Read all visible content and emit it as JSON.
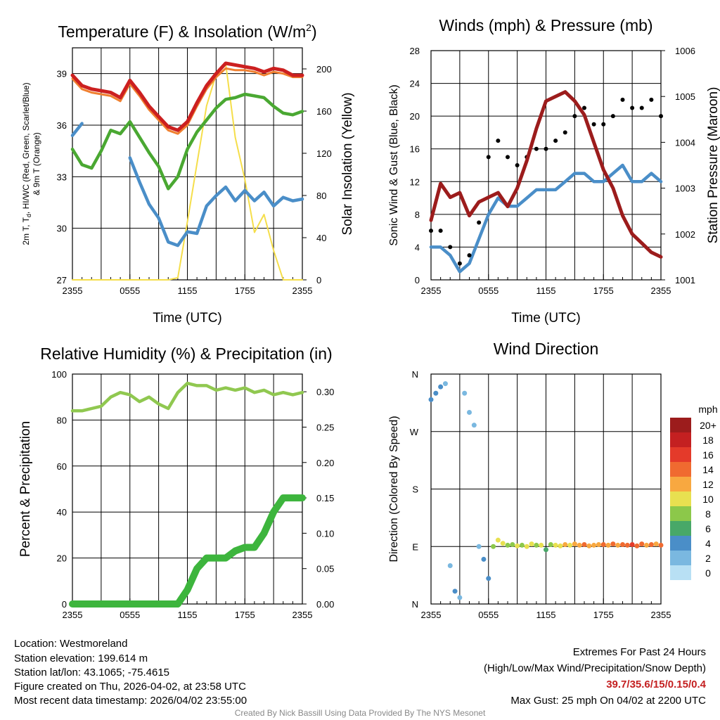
{
  "colors": {
    "red": "#cc2020",
    "orange": "#f08030",
    "green": "#4aa832",
    "blue": "#4a8ec8",
    "yellow": "#f5de4a",
    "maroon": "#9c1c1c",
    "black": "#000000",
    "rh": "#90c850",
    "precip": "#3db53d",
    "grid": "#000000",
    "extremes": "#c42021",
    "credit": "#888888"
  },
  "chart_data": [
    {
      "type": "line",
      "title": "Temperature (F) & Insolation (W/m",
      "title_sup": "2",
      "title_close": ")",
      "xlabel": "Time (UTC)",
      "ylabel_lines": [
        "2m T, T",
        "d",
        ", HI/WC (Red, Green, Scarlet/Blue)",
        "& 9m T (Orange)"
      ],
      "y2label": "Solar Insolation (Yellow)",
      "x_ticks": [
        "2355",
        "0555",
        "1155",
        "1755",
        "2355"
      ],
      "ylim": [
        27,
        40.5
      ],
      "y_ticks": [
        27,
        30,
        33,
        36,
        39
      ],
      "y2lim": [
        0,
        220
      ],
      "y2_ticks": [
        0,
        40,
        80,
        120,
        160,
        200
      ],
      "x_hours": [
        0,
        1,
        2,
        3,
        4,
        5,
        6,
        7,
        8,
        9,
        10,
        11,
        12,
        13,
        14,
        15,
        16,
        17,
        18,
        19,
        20,
        21,
        22,
        23,
        24
      ],
      "series": [
        {
          "name": "2m T",
          "values": [
            38.9,
            38.3,
            38.1,
            38.0,
            37.9,
            37.6,
            38.6,
            37.9,
            37.1,
            36.5,
            35.9,
            35.7,
            36.2,
            37.3,
            38.3,
            39.0,
            39.6,
            39.5,
            39.4,
            39.3,
            39.1,
            39.3,
            39.2,
            38.9,
            38.9
          ]
        },
        {
          "name": "9m T",
          "values": [
            38.7,
            38.1,
            37.9,
            37.8,
            37.7,
            37.4,
            38.4,
            37.7,
            36.9,
            36.3,
            35.7,
            35.5,
            36.0,
            37.1,
            38.1,
            38.8,
            39.3,
            39.2,
            39.2,
            39.1,
            38.9,
            39.1,
            39.0,
            38.8,
            38.8
          ]
        },
        {
          "name": "Td",
          "values": [
            34.6,
            33.7,
            33.5,
            34.5,
            35.7,
            35.5,
            36.2,
            35.3,
            34.4,
            33.6,
            32.3,
            33.0,
            34.6,
            35.6,
            36.3,
            37.0,
            37.5,
            37.6,
            37.8,
            37.7,
            37.6,
            37.1,
            36.7,
            36.6,
            36.8
          ]
        },
        {
          "name": "HI/WC",
          "values": [
            35.4,
            36.1,
            null,
            null,
            null,
            null,
            34.1,
            32.7,
            31.4,
            30.6,
            29.2,
            29.0,
            29.8,
            29.7,
            31.3,
            31.9,
            32.4,
            31.6,
            32.2,
            31.6,
            32.1,
            31.3,
            31.8,
            31.6,
            31.7
          ]
        },
        {
          "name": "Insolation",
          "values": [
            0,
            0,
            0,
            0,
            0,
            0,
            0,
            0,
            0,
            0,
            0,
            2,
            55,
            110,
            165,
            195,
            205,
            135,
            95,
            45,
            62,
            28,
            0,
            0,
            0
          ]
        }
      ]
    },
    {
      "type": "line",
      "title": "Winds (mph) & Pressure (mb)",
      "xlabel": "Time (UTC)",
      "ylabel": "Sonic Wind & Gust (Blue, Black)",
      "y2label": "Station Pressure (Maroon)",
      "x_ticks": [
        "2355",
        "0555",
        "1155",
        "1755",
        "2355"
      ],
      "ylim": [
        0,
        28
      ],
      "y_ticks": [
        0,
        4,
        8,
        12,
        16,
        20,
        24,
        28
      ],
      "y2lim": [
        1001,
        1006
      ],
      "y2_ticks": [
        1001,
        1002,
        1003,
        1004,
        1005,
        1006
      ],
      "x_hours": [
        0,
        1,
        2,
        3,
        4,
        5,
        6,
        7,
        8,
        9,
        10,
        11,
        12,
        13,
        14,
        15,
        16,
        17,
        18,
        19,
        20,
        21,
        22,
        23,
        24
      ],
      "series": [
        {
          "name": "Sonic Wind",
          "values": [
            4,
            4,
            3,
            1,
            2,
            5,
            8,
            10,
            9,
            9,
            10,
            11,
            11,
            11,
            12,
            13,
            13,
            12,
            12,
            13,
            14,
            12,
            12,
            13,
            12
          ]
        },
        {
          "name": "Gust",
          "values": [
            6,
            6,
            4,
            2,
            3,
            7,
            15,
            17,
            15,
            14,
            15,
            16,
            16,
            17,
            18,
            20,
            21,
            19,
            19,
            20,
            22,
            21,
            21,
            22,
            20
          ]
        },
        {
          "name": "Station Pressure",
          "values": [
            1002.3,
            1003.1,
            1002.8,
            1002.9,
            1002.4,
            1002.7,
            1002.8,
            1002.9,
            1002.6,
            1003.0,
            1003.6,
            1004.3,
            1004.9,
            1005.0,
            1005.1,
            1004.9,
            1004.6,
            1004.0,
            1003.4,
            1003.0,
            1002.4,
            1002.0,
            1001.8,
            1001.6,
            1001.5
          ]
        }
      ]
    },
    {
      "type": "line",
      "title": "Relative Humidity (%) & Precipitation (in)",
      "xlabel": "",
      "ylabel": "Percent & Precipitation",
      "x_ticks": [
        "2355",
        "0555",
        "1155",
        "1755",
        "2355"
      ],
      "ylim": [
        0,
        100
      ],
      "y_ticks": [
        0,
        20,
        40,
        60,
        80,
        100
      ],
      "y2lim": [
        0,
        0.325
      ],
      "y2_ticks": [
        "0.00",
        "0.05",
        "0.10",
        "0.15",
        "0.20",
        "0.25",
        "0.30"
      ],
      "x_hours": [
        0,
        1,
        2,
        3,
        4,
        5,
        6,
        7,
        8,
        9,
        10,
        11,
        12,
        13,
        14,
        15,
        16,
        17,
        18,
        19,
        20,
        21,
        22,
        23,
        24
      ],
      "series": [
        {
          "name": "Relative Humidity",
          "values": [
            84,
            84,
            85,
            86,
            90,
            92,
            91,
            88,
            90,
            87,
            85,
            92,
            96,
            95,
            95,
            93,
            94,
            93,
            94,
            92,
            93,
            91,
            92,
            91,
            92
          ]
        },
        {
          "name": "Precipitation",
          "values": [
            0,
            0,
            0,
            0,
            0,
            0,
            0,
            0,
            0,
            0,
            0,
            0,
            0.02,
            0.05,
            0.065,
            0.065,
            0.065,
            0.075,
            0.08,
            0.08,
            0.1,
            0.13,
            0.15,
            0.15,
            0.15
          ]
        }
      ]
    },
    {
      "type": "scatter",
      "title": "Wind Direction",
      "ylabel": "Direction (Colored By Speed)",
      "x_ticks": [
        "2355",
        "0555",
        "1155",
        "1755",
        "2355"
      ],
      "y_ticks": [
        "N",
        "E",
        "S",
        "W",
        "N"
      ],
      "ylim": [
        0,
        360
      ],
      "x_hours": [
        0,
        0.5,
        1,
        1.5,
        2,
        2.5,
        3,
        3.5,
        4,
        4.5,
        5,
        5.5,
        6,
        6.5,
        7,
        7.5,
        8,
        8.5,
        9,
        9.5,
        10,
        10.5,
        11,
        11.5,
        12,
        12.5,
        13,
        13.5,
        14,
        14.5,
        15,
        15.5,
        16,
        16.5,
        17,
        17.5,
        18,
        18.5,
        19,
        19.5,
        20,
        20.5,
        21,
        21.5,
        22,
        22.5,
        23,
        23.5,
        24
      ],
      "directions": [
        320,
        330,
        340,
        345,
        60,
        20,
        10,
        330,
        300,
        280,
        90,
        70,
        40,
        90,
        100,
        95,
        92,
        93,
        91,
        92,
        90,
        94,
        92,
        92,
        85,
        93,
        92,
        91,
        93,
        92,
        94,
        92,
        93,
        91,
        92,
        93,
        93,
        92,
        94,
        92,
        93,
        92,
        93,
        91,
        94,
        92,
        93,
        94,
        92
      ],
      "speeds": [
        3,
        4,
        3,
        2,
        2,
        3,
        1,
        1,
        2,
        1,
        2,
        3,
        4,
        8,
        10,
        9,
        8,
        7,
        9,
        8,
        10,
        9,
        8,
        9,
        6,
        8,
        9,
        10,
        11,
        10,
        12,
        11,
        13,
        11,
        12,
        12,
        14,
        12,
        13,
        12,
        14,
        13,
        16,
        14,
        13,
        12,
        14,
        12,
        13
      ],
      "legend_title": "mph",
      "legend_labels": [
        "20+",
        "18",
        "16",
        "14",
        "12",
        "10",
        "8",
        "6",
        "4",
        "2",
        "0"
      ],
      "legend_colors": [
        "#9c1c1c",
        "#c42021",
        "#e43a2a",
        "#f06a30",
        "#f8a840",
        "#e8e050",
        "#8cc84a",
        "#48a868",
        "#4a8ec8",
        "#7ab8e0",
        "#b8e0f4"
      ]
    }
  ],
  "footer": {
    "location": "Location: Westmoreland",
    "elevation": "Station elevation: 199.614 m",
    "latlon": "Station lat/lon: 43.1065; -75.4615",
    "created": "Figure created on Thu, 2026-04-02, at 23:58 UTC",
    "recent": "Most recent data timestamp: 2026/04/02 23:55:00",
    "extremes_title": "Extremes For Past 24 Hours",
    "extremes_sub": "(High/Low/Max Wind/Precipitation/Snow Depth)",
    "extremes_values": "39.7/35.6/15/0.15/0.4",
    "max_gust": "Max Gust: 25 mph On 04/02 at 2200 UTC",
    "credit": "Created By Nick Bassill Using Data Provided By The NYS Mesonet"
  }
}
